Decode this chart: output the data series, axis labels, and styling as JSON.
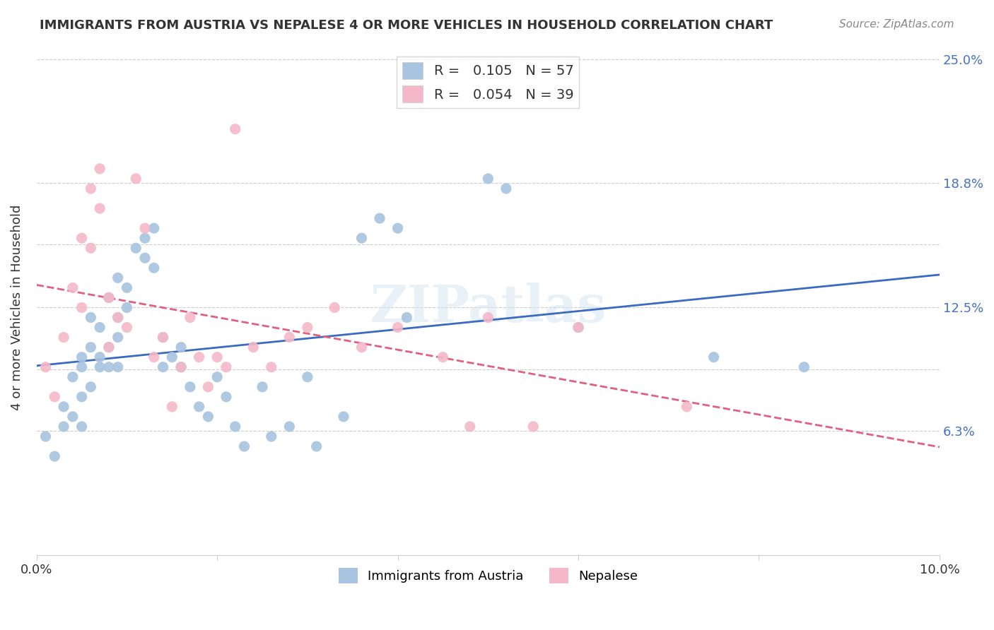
{
  "title": "IMMIGRANTS FROM AUSTRIA VS NEPALESE 4 OR MORE VEHICLES IN HOUSEHOLD CORRELATION CHART",
  "source": "Source: ZipAtlas.com",
  "ylabel": "4 or more Vehicles in Household",
  "x_min": 0.0,
  "x_max": 0.1,
  "y_min": 0.0,
  "y_max": 0.25,
  "x_tick_positions": [
    0.0,
    0.02,
    0.04,
    0.06,
    0.08,
    0.1
  ],
  "x_tick_labels": [
    "0.0%",
    "",
    "",
    "",
    "",
    "10.0%"
  ],
  "y_tick_positions": [
    0.063,
    0.094,
    0.125,
    0.157,
    0.188,
    0.25
  ],
  "y_tick_labels_right": [
    "6.3%",
    "",
    "12.5%",
    "",
    "18.8%",
    "25.0%"
  ],
  "legend_labels": [
    "Immigrants from Austria",
    "Nepalese"
  ],
  "blue_color": "#a8c4e0",
  "pink_color": "#f4b8c8",
  "blue_line_color": "#3a6bbf",
  "pink_line_color": "#e06080",
  "R_blue": 0.105,
  "N_blue": 57,
  "R_pink": 0.054,
  "N_pink": 39,
  "watermark": "ZIPatlas",
  "austria_x": [
    0.001,
    0.002,
    0.003,
    0.003,
    0.004,
    0.004,
    0.005,
    0.005,
    0.005,
    0.005,
    0.006,
    0.006,
    0.006,
    0.007,
    0.007,
    0.007,
    0.008,
    0.008,
    0.008,
    0.009,
    0.009,
    0.009,
    0.009,
    0.01,
    0.01,
    0.011,
    0.012,
    0.012,
    0.013,
    0.013,
    0.014,
    0.014,
    0.015,
    0.016,
    0.016,
    0.017,
    0.018,
    0.019,
    0.02,
    0.021,
    0.022,
    0.023,
    0.025,
    0.026,
    0.028,
    0.03,
    0.031,
    0.034,
    0.036,
    0.038,
    0.04,
    0.041,
    0.05,
    0.052,
    0.06,
    0.075,
    0.085
  ],
  "austria_y": [
    0.06,
    0.05,
    0.075,
    0.065,
    0.09,
    0.07,
    0.1,
    0.065,
    0.08,
    0.095,
    0.105,
    0.085,
    0.12,
    0.1,
    0.095,
    0.115,
    0.13,
    0.105,
    0.095,
    0.14,
    0.12,
    0.11,
    0.095,
    0.135,
    0.125,
    0.155,
    0.16,
    0.15,
    0.145,
    0.165,
    0.095,
    0.11,
    0.1,
    0.105,
    0.095,
    0.085,
    0.075,
    0.07,
    0.09,
    0.08,
    0.065,
    0.055,
    0.085,
    0.06,
    0.065,
    0.09,
    0.055,
    0.07,
    0.16,
    0.17,
    0.165,
    0.12,
    0.19,
    0.185,
    0.115,
    0.1,
    0.095
  ],
  "nepalese_x": [
    0.001,
    0.002,
    0.003,
    0.004,
    0.005,
    0.005,
    0.006,
    0.006,
    0.007,
    0.007,
    0.008,
    0.008,
    0.009,
    0.01,
    0.011,
    0.012,
    0.013,
    0.014,
    0.015,
    0.016,
    0.017,
    0.018,
    0.019,
    0.02,
    0.021,
    0.022,
    0.024,
    0.026,
    0.028,
    0.03,
    0.033,
    0.036,
    0.04,
    0.045,
    0.048,
    0.05,
    0.055,
    0.06,
    0.072
  ],
  "nepalese_y": [
    0.095,
    0.08,
    0.11,
    0.135,
    0.125,
    0.16,
    0.185,
    0.155,
    0.175,
    0.195,
    0.105,
    0.13,
    0.12,
    0.115,
    0.19,
    0.165,
    0.1,
    0.11,
    0.075,
    0.095,
    0.12,
    0.1,
    0.085,
    0.1,
    0.095,
    0.215,
    0.105,
    0.095,
    0.11,
    0.115,
    0.125,
    0.105,
    0.115,
    0.1,
    0.065,
    0.12,
    0.065,
    0.115,
    0.075
  ]
}
